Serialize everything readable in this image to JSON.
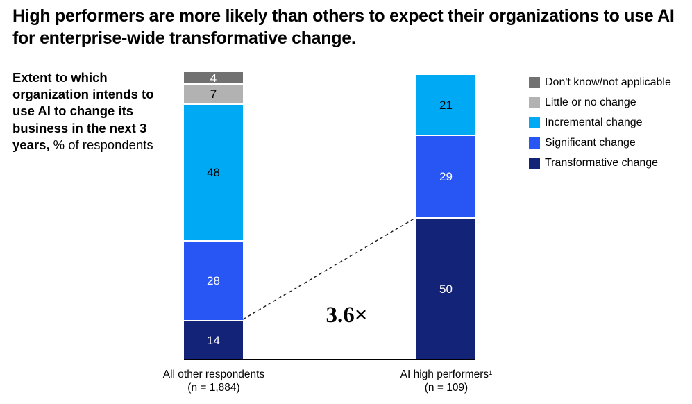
{
  "title": "High performers are more likely than others to expect their organizations to use AI for enterprise-wide transformative change.",
  "description": {
    "bold": "Extent to which organization intends to use AI to change its business in the next 3 years,",
    "unit": "% of respondents"
  },
  "chart_data": {
    "type": "bar",
    "stacked": true,
    "grid": false,
    "legend_position": "right",
    "ylim": [
      0,
      101
    ],
    "categories": [
      "All other respondents",
      "AI high performers¹"
    ],
    "category_counts": [
      "(n = 1,884)",
      "(n = 109)"
    ],
    "series": [
      {
        "name": "Don't know/not applicable",
        "color": "#717171",
        "label_color": "#ffffff",
        "values": [
          4,
          0
        ]
      },
      {
        "name": "Little or no change",
        "color": "#b2b2b2",
        "label_color": "#000000",
        "values": [
          7,
          0
        ]
      },
      {
        "name": "Incremental change",
        "color": "#00a9f4",
        "label_color": "#000000",
        "values": [
          48,
          21
        ]
      },
      {
        "name": "Significant change",
        "color": "#2856f5",
        "label_color": "#ffffff",
        "values": [
          28,
          29
        ]
      },
      {
        "name": "Transformative change",
        "color": "#132377",
        "label_color": "#ffffff",
        "values": [
          14,
          50
        ]
      }
    ],
    "ratio_label": "3.6×"
  }
}
